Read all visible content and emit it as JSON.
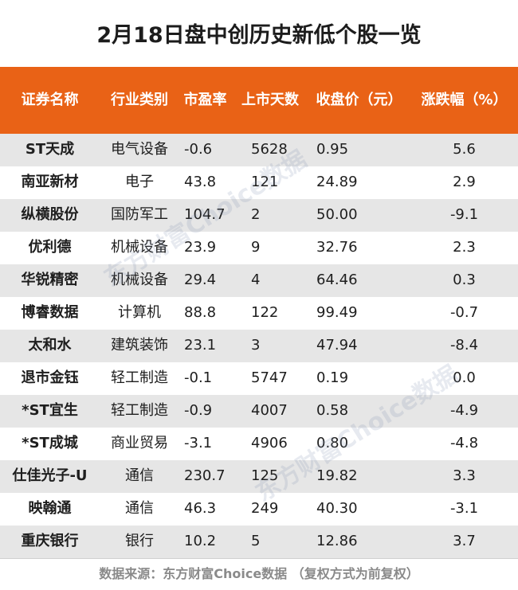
{
  "title": "2月18日盘中创历史新低个股一览",
  "header": {
    "columns": [
      "证券名称",
      "行业类别",
      "市盈率",
      "上市天数",
      "收盘价（元）",
      "涨跌幅（%）"
    ]
  },
  "rows": [
    [
      "ST天成",
      "电气设备",
      "-0.6",
      "5628",
      "0.95",
      "5.6"
    ],
    [
      "南亚新材",
      "电子",
      "43.8",
      "121",
      "24.89",
      "2.9"
    ],
    [
      "纵横股份",
      "国防军工",
      "104.7",
      "2",
      "50.00",
      "-9.1"
    ],
    [
      "优利德",
      "机械设备",
      "23.9",
      "9",
      "32.76",
      "2.3"
    ],
    [
      "华锐精密",
      "机械设备",
      "29.4",
      "4",
      "64.46",
      "0.3"
    ],
    [
      "博睿数据",
      "计算机",
      "88.8",
      "122",
      "99.49",
      "-0.7"
    ],
    [
      "太和水",
      "建筑装饰",
      "23.1",
      "3",
      "47.94",
      "-8.4"
    ],
    [
      "退市金钰",
      "轻工制造",
      "-0.1",
      "5747",
      "0.19",
      "0.0"
    ],
    [
      "*ST宜生",
      "轻工制造",
      "-0.9",
      "4007",
      "0.58",
      "-4.9"
    ],
    [
      "*ST成城",
      "商业贸易",
      "-3.1",
      "4906",
      "0.80",
      "-4.8"
    ],
    [
      "仕佳光子-U",
      "通信",
      "230.7",
      "125",
      "19.82",
      "3.3"
    ],
    [
      "映翰通",
      "通信",
      "46.3",
      "249",
      "40.30",
      "-3.1"
    ],
    [
      "重庆银行",
      "银行",
      "10.2",
      "5",
      "12.86",
      "3.7"
    ]
  ],
  "footer": "数据来源：东方财富Choice数据 （复权方式为前复权）",
  "watermark": "东方财富Choice数据",
  "colors": {
    "header_bg": "#e96216",
    "stripe": "#e6e6e6"
  }
}
